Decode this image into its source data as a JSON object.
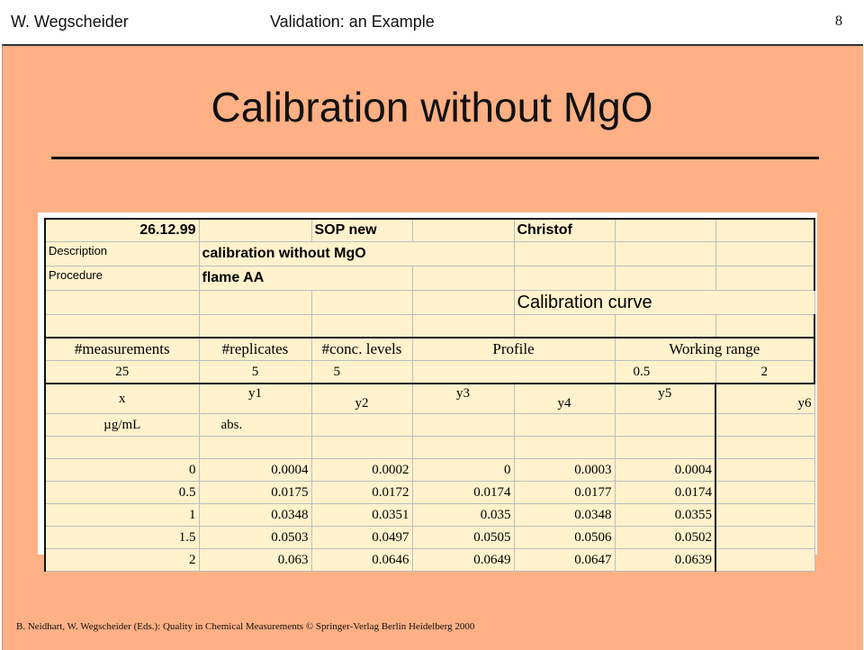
{
  "header": {
    "author": "W.  Wegscheider",
    "section": "Validation: an Example",
    "slide_number": "8"
  },
  "title": "Calibration without MgO",
  "sheet": {
    "date": "26.12.99",
    "sop": "SOP new",
    "person": "Christof",
    "description_label": "Description",
    "description_value": "calibration without MgO",
    "procedure_label": "Procedure",
    "procedure_value": "flame AA",
    "curve_title": "Calibration curve",
    "params_headers": {
      "measurements": "#measurements",
      "replicates": "#replicates",
      "conc_levels": "#conc. levels",
      "profile": "Profile",
      "working_range": "Working range"
    },
    "params_values": {
      "measurements": "25",
      "replicates": "5",
      "conc_levels": "5",
      "range_low": "0.5",
      "range_high": "2"
    },
    "columns": [
      "x",
      "y1",
      "y2",
      "y3",
      "y4",
      "y5",
      "y6"
    ],
    "units": {
      "x": "µg/mL",
      "y": "abs."
    },
    "rows": [
      [
        "0",
        "0.0004",
        "0.0002",
        "0",
        "0.0003",
        "0.0004"
      ],
      [
        "0.5",
        "0.0175",
        "0.0172",
        "0.0174",
        "0.0177",
        "0.0174"
      ],
      [
        "1",
        "0.0348",
        "0.0351",
        "0.035",
        "0.0348",
        "0.0355"
      ],
      [
        "1.5",
        "0.0503",
        "0.0497",
        "0.0505",
        "0.0506",
        "0.0502"
      ],
      [
        "2",
        "0.063",
        "0.0646",
        "0.0649",
        "0.0647",
        "0.0639"
      ]
    ]
  },
  "footer": "B. Neidhart, W. Wegscheider  (Eds.): Quality in Chemical Measurements © Springer-Verlag  Berlin Heidelberg 2000"
}
